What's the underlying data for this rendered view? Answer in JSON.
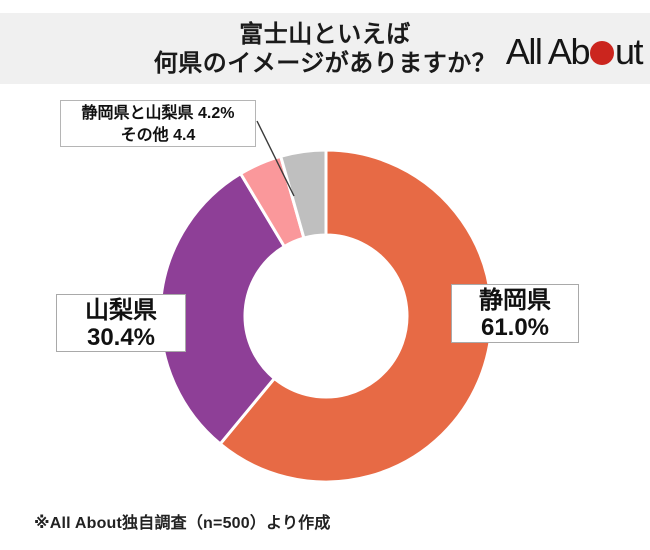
{
  "header": {
    "title_line1": "富士山といえば",
    "title_line2": "何県のイメージがありますか？",
    "logo": {
      "name": "All About",
      "text_before_dot": "All Ab",
      "text_after_dot": "ut",
      "dot_color": "#cb251e"
    }
  },
  "chart_data": {
    "type": "donut",
    "title": "富士山といえば何県のイメージがありますか？",
    "direction": "clockwise",
    "start_angle_deg": 0,
    "inner_radius_ratio": 0.49,
    "slices": [
      {
        "id": "shizuoka",
        "label": "静岡県",
        "value": 61.0,
        "display": "61.0%",
        "color": "#e76a45"
      },
      {
        "id": "yamanashi",
        "label": "山梨県",
        "value": 30.4,
        "display": "30.4%",
        "color": "#8e3f97"
      },
      {
        "id": "both-prefectures",
        "label": "静岡県と山梨県",
        "value": 4.2,
        "display": "4.2%",
        "color": "#fa989b"
      },
      {
        "id": "other",
        "label": "その他",
        "value": 4.4,
        "display": "4.4",
        "color": "#bfbfbf"
      }
    ],
    "callout": {
      "line1": "静岡県と山梨県 4.2%",
      "line2": "その他 4.4"
    },
    "source_note": "※All About独自調査（n=500）より作成"
  }
}
